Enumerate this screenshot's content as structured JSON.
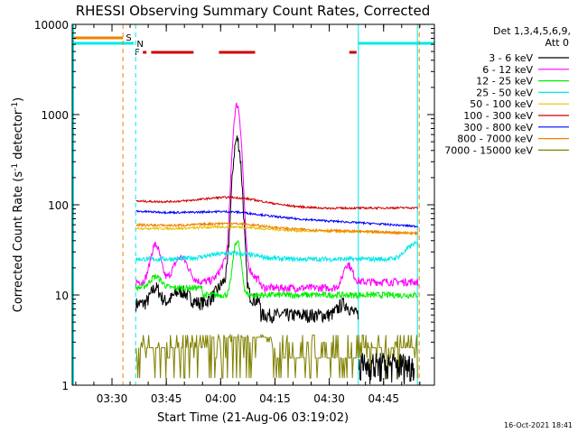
{
  "chart_data": {
    "type": "line",
    "title": "RHESSI Observing Summary Count Rates, Corrected",
    "xlabel": "Start Time (21-Aug-06 03:19:02)",
    "ylabel_main": "Corrected Count Rate (s",
    "ylabel_sup": "-1",
    "ylabel_rest": " detector",
    "ylabel_sup2": "-1",
    "ylabel_end": ")",
    "yscale": "log",
    "ylim": [
      1,
      10000
    ],
    "xlim_minutes": [
      0,
      75
    ],
    "x_ticks": [
      {
        "label": "03:30",
        "min": 10.97
      },
      {
        "label": "03:45",
        "min": 25.97
      },
      {
        "label": "04:00",
        "min": 40.97
      },
      {
        "label": "04:15",
        "min": 55.97
      },
      {
        "label": "04:30",
        "min": 70.97
      },
      {
        "label": "04:45",
        "min": 85.97
      }
    ],
    "y_ticks": [
      {
        "label": "1",
        "value": 1
      },
      {
        "label": "10",
        "value": 10
      },
      {
        "label": "100",
        "value": 100
      },
      {
        "label": "1000",
        "value": 1000
      },
      {
        "label": "10000",
        "value": 10000
      }
    ],
    "legend_header1": "Det 1,3,4,5,6,9,",
    "legend_header2": "Att 0",
    "series": [
      {
        "name": "3 - 6 keV",
        "color": "#000000"
      },
      {
        "name": "6 - 12 keV",
        "color": "#ff00ff"
      },
      {
        "name": "12 - 25 keV",
        "color": "#00ee00"
      },
      {
        "name": "25 - 50 keV",
        "color": "#00e8e8"
      },
      {
        "name": "50 - 100 keV",
        "color": "#e8c000"
      },
      {
        "name": "100 - 300 keV",
        "color": "#d00000"
      },
      {
        "name": "300 - 800 keV",
        "color": "#0000ff"
      },
      {
        "name": "800 - 7000 keV",
        "color": "#f08000"
      },
      {
        "name": "7000 - 15000 keV",
        "color": "#808000"
      }
    ],
    "flag_labels": {
      "saa": "S",
      "night": "N",
      "flare": "F"
    },
    "timestamp": "16-Oct-2021 18:41"
  }
}
